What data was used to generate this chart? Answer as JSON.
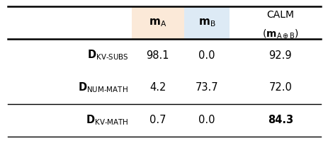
{
  "col_headers_line1": [
    "",
    "m_A",
    "m_B",
    "CALM"
  ],
  "col_headers_line2": [
    "",
    "",
    "",
    "(m_{A oplus B})"
  ],
  "rows": [
    [
      "D_KV-SUBS",
      "98.1",
      "0.0",
      "92.9"
    ],
    [
      "D_NUM-MATH",
      "4.2",
      "73.7",
      "72.0"
    ],
    [
      "D_KV-MATH",
      "0.7",
      "0.0",
      "84.3"
    ]
  ],
  "col_bg": [
    "none",
    "#fbe9d8",
    "#ddeaf5",
    "none"
  ],
  "bold_last_row_calm": true,
  "fig_width": 4.64,
  "fig_height": 2.02,
  "dpi": 100,
  "lw_thick": 1.8,
  "lw_thin": 1.0,
  "header_fontsize": 11,
  "data_fontsize": 10.5
}
